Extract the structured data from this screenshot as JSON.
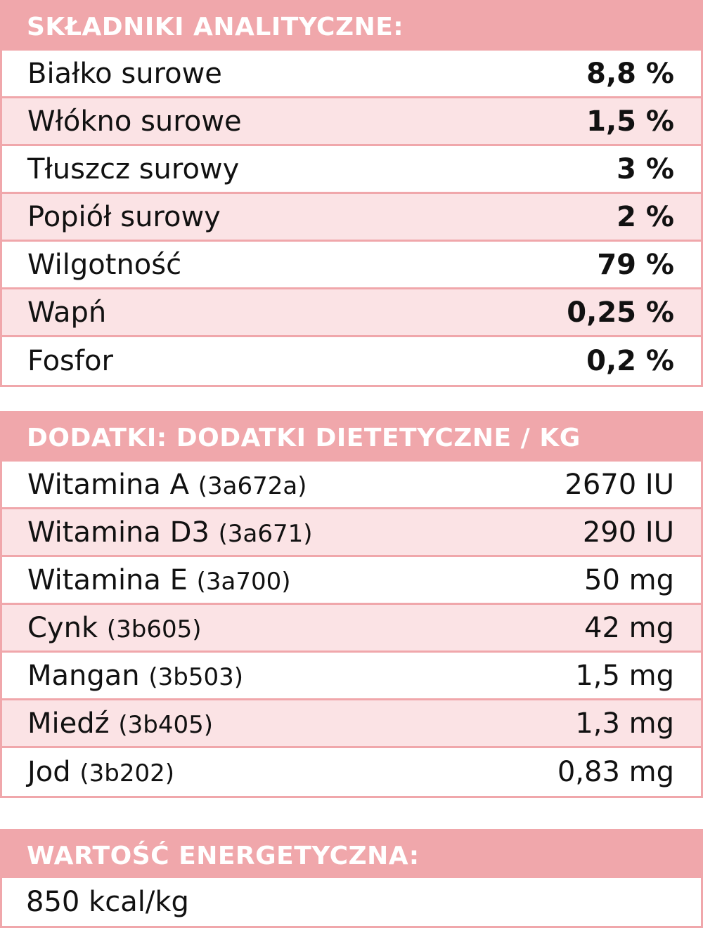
{
  "analytical": {
    "title": "SKŁADNIKI ANALITYCZNE:",
    "rows": [
      {
        "name": "Białko surowe",
        "value": "8,8 %"
      },
      {
        "name": "Włókno surowe",
        "value": "1,5 %"
      },
      {
        "name": "Tłuszcz surowy",
        "value": "3 %"
      },
      {
        "name": "Popiół surowy",
        "value": "2 %"
      },
      {
        "name": "Wilgotność",
        "value": "79 %"
      },
      {
        "name": "Wapń",
        "value": "0,25 %"
      },
      {
        "name": "Fosfor",
        "value": "0,2 %"
      }
    ]
  },
  "additives": {
    "title": "DODATKI: DODATKI DIETETYCZNE / KG",
    "rows": [
      {
        "name": "Witamina A",
        "code": "(3a672a)",
        "value": "2670 IU"
      },
      {
        "name": "Witamina D3",
        "code": "(3a671)",
        "value": "290 IU"
      },
      {
        "name": "Witamina E",
        "code": "(3a700)",
        "value": "50 mg"
      },
      {
        "name": "Cynk",
        "code": "(3b605)",
        "value": "42 mg"
      },
      {
        "name": "Mangan",
        "code": "(3b503)",
        "value": "1,5 mg"
      },
      {
        "name": "Miedź",
        "code": "(3b405)",
        "value": "1,3 mg"
      },
      {
        "name": "Jod",
        "code": "(3b202)",
        "value": "0,83 mg"
      }
    ]
  },
  "energy": {
    "title": "WARTOŚĆ ENERGETYCZNA:",
    "value": "850 kcal/kg"
  },
  "colors": {
    "header": "#f0a7ab",
    "row_alt": "#fbe3e5"
  }
}
